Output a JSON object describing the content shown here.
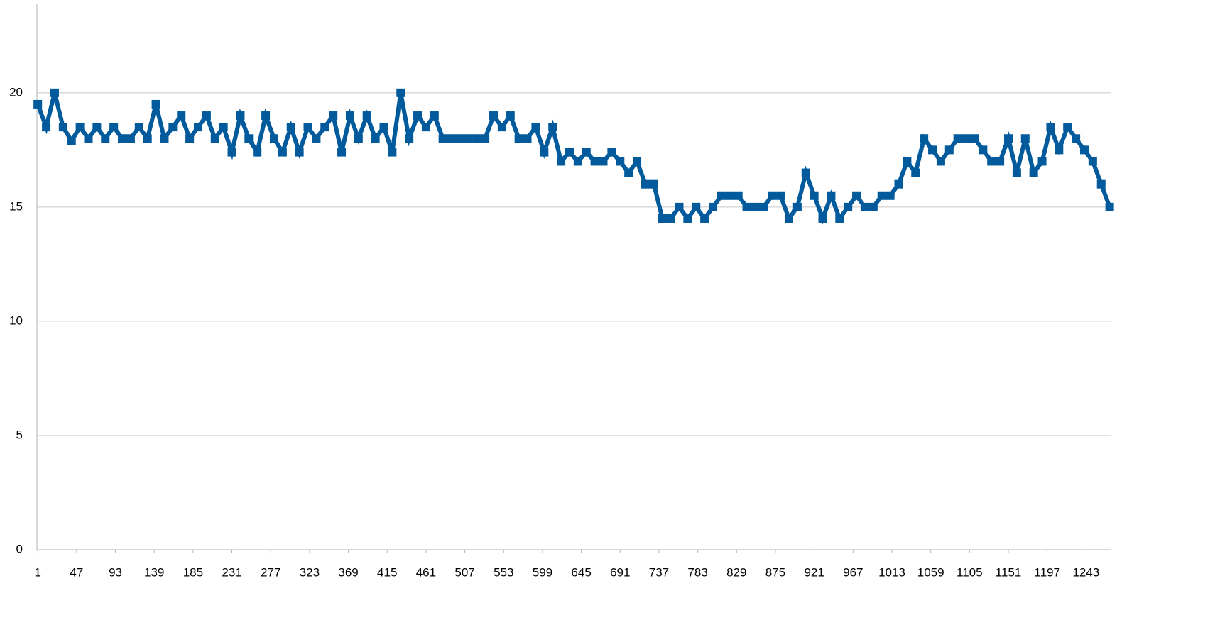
{
  "chart_data": {
    "type": "line",
    "color": "#005a9c",
    "grid": true,
    "marker": "square",
    "xlim": [
      0,
      1273
    ],
    "ylim": [
      0,
      24
    ],
    "xticks": [
      1,
      47,
      93,
      139,
      185,
      231,
      277,
      323,
      369,
      415,
      461,
      507,
      553,
      599,
      645,
      691,
      737,
      783,
      829,
      875,
      921,
      967,
      1013,
      1059,
      1105,
      1151,
      1197,
      1243
    ],
    "yticks": [
      0,
      5,
      10,
      15,
      20
    ],
    "x": [
      1,
      11,
      21,
      31,
      41,
      51,
      61,
      71,
      81,
      91,
      101,
      111,
      121,
      131,
      141,
      151,
      161,
      171,
      181,
      191,
      201,
      211,
      221,
      231,
      241,
      251,
      261,
      271,
      281,
      291,
      301,
      311,
      321,
      331,
      341,
      351,
      361,
      371,
      381,
      391,
      401,
      411,
      421,
      431,
      441,
      451,
      461,
      471,
      481,
      491,
      501,
      511,
      521,
      531,
      541,
      551,
      561,
      571,
      581,
      591,
      601,
      611,
      621,
      631,
      641,
      651,
      661,
      671,
      681,
      691,
      701,
      711,
      721,
      731,
      741,
      751,
      761,
      771,
      781,
      791,
      801,
      811,
      821,
      831,
      841,
      851,
      861,
      871,
      881,
      891,
      901,
      911,
      921,
      931,
      941,
      951,
      961,
      971,
      981,
      991,
      1001,
      1011,
      1021,
      1031,
      1041,
      1051,
      1061,
      1071,
      1081,
      1091,
      1101,
      1111,
      1121,
      1131,
      1141,
      1151,
      1161,
      1171,
      1181,
      1191,
      1201,
      1211,
      1221,
      1231,
      1241,
      1251,
      1261,
      1271
    ],
    "values": [
      19.5,
      18.5,
      20,
      18.5,
      17.9,
      18.5,
      18,
      18.5,
      18,
      18.5,
      18,
      18,
      18.5,
      18,
      19.5,
      18,
      18.5,
      19,
      18,
      18.5,
      19,
      18,
      18.5,
      17.4,
      19,
      18,
      17.4,
      19,
      18,
      17.4,
      18.5,
      17.4,
      18.5,
      18,
      18.5,
      19,
      17.4,
      19,
      18,
      19,
      18,
      18.5,
      17.4,
      20,
      18,
      19,
      18.5,
      19,
      18,
      18,
      18,
      18,
      18,
      18,
      19,
      18.5,
      19,
      18,
      18,
      18.5,
      17.4,
      18.5,
      17,
      17.4,
      17,
      17.4,
      17,
      17,
      17.4,
      17,
      16.5,
      17,
      16,
      16,
      14.5,
      14.5,
      15,
      14.5,
      15,
      14.5,
      15,
      15.5,
      15.5,
      15.5,
      15,
      15,
      15,
      15.5,
      15.5,
      14.5,
      15,
      16.5,
      15.5,
      14.5,
      15.5,
      14.5,
      15,
      15.5,
      15,
      15,
      15.5,
      15.5,
      16,
      17,
      16.5,
      18,
      17.5,
      17,
      17.5,
      18,
      18,
      18,
      17.5,
      17,
      17,
      18,
      16.5,
      18,
      16.5,
      17,
      18.5,
      17.5,
      18.5,
      18,
      17.5,
      17,
      16,
      15
    ]
  }
}
